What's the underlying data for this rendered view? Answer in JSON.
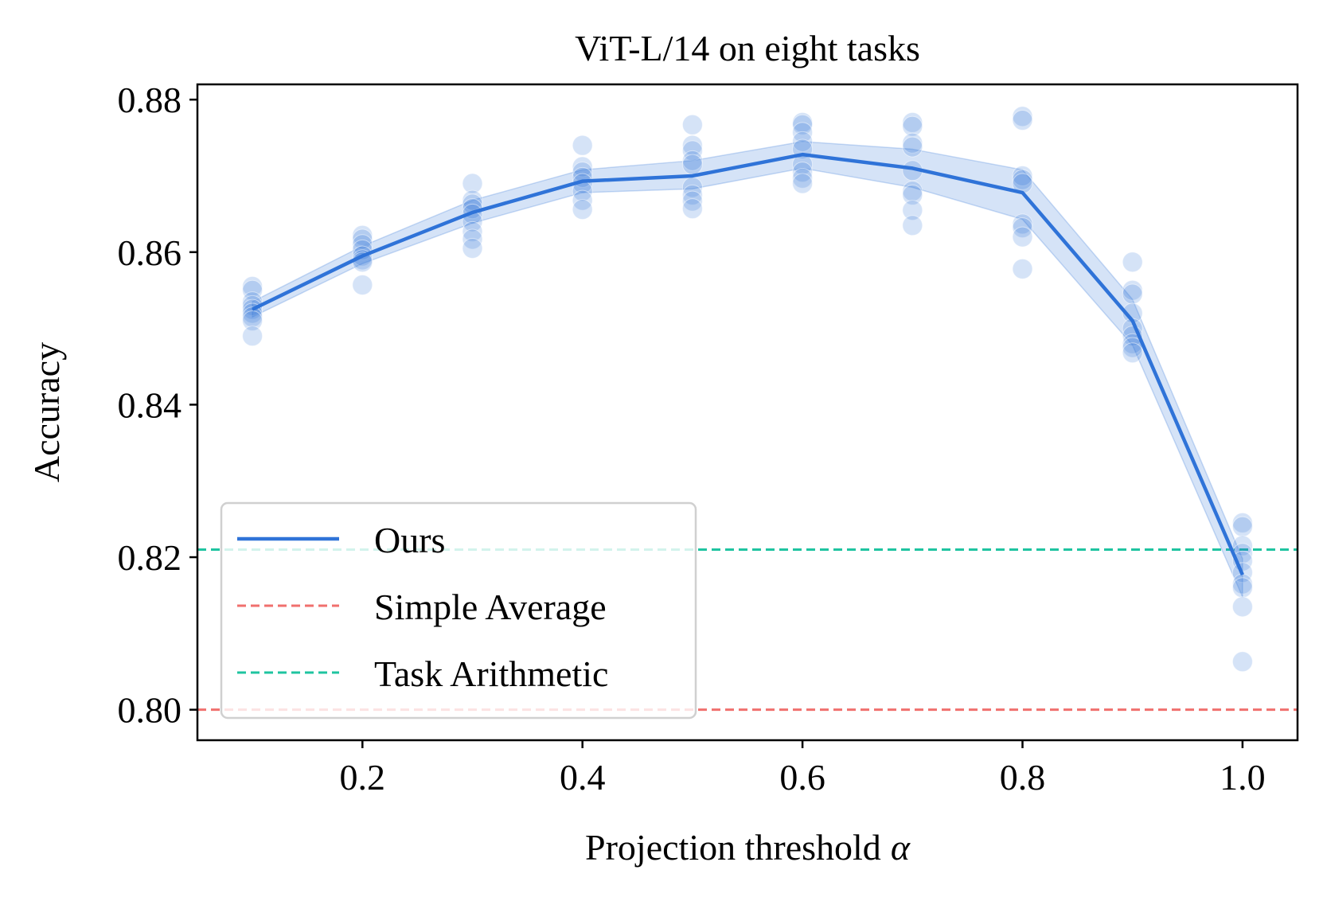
{
  "chart_data": {
    "type": "line",
    "title": "ViT-L/14 on eight tasks",
    "xlabel": "Projection threshold",
    "xlabel_symbol": "α",
    "ylabel": "Accuracy",
    "xlim": [
      0.05,
      1.05
    ],
    "ylim": [
      0.796,
      0.882
    ],
    "xticks": [
      0.2,
      0.4,
      0.6,
      0.8,
      1.0
    ],
    "xtick_labels": [
      "0.2",
      "0.4",
      "0.6",
      "0.8",
      "1.0"
    ],
    "yticks": [
      0.8,
      0.82,
      0.84,
      0.86,
      0.88
    ],
    "ytick_labels": [
      "0.80",
      "0.82",
      "0.84",
      "0.86",
      "0.88"
    ],
    "grid": false,
    "legend_position": "lower-left",
    "series": [
      {
        "name": "Ours",
        "style": "solid",
        "color": "#2f73d8",
        "x": [
          0.1,
          0.2,
          0.3,
          0.4,
          0.5,
          0.6,
          0.7,
          0.8,
          0.9,
          1.0
        ],
        "mean": [
          0.8525,
          0.8595,
          0.8652,
          0.8693,
          0.87,
          0.8728,
          0.871,
          0.8678,
          0.851,
          0.8177
        ],
        "band_low": [
          0.8515,
          0.8585,
          0.8638,
          0.8678,
          0.8683,
          0.871,
          0.8685,
          0.8643,
          0.8478,
          0.8148
        ],
        "band_high": [
          0.8535,
          0.8608,
          0.8668,
          0.8708,
          0.872,
          0.8745,
          0.8735,
          0.8708,
          0.8538,
          0.8198
        ],
        "samples": [
          {
            "x": 0.1,
            "y": [
              0.8555,
              0.855,
              0.8535,
              0.853,
              0.8525,
              0.852,
              0.8515,
              0.851,
              0.849
            ]
          },
          {
            "x": 0.2,
            "y": [
              0.8622,
              0.8617,
              0.861,
              0.8603,
              0.8595,
              0.859,
              0.8587,
              0.8557
            ]
          },
          {
            "x": 0.3,
            "y": [
              0.869,
              0.8668,
              0.8663,
              0.8657,
              0.865,
              0.864,
              0.8627,
              0.8617,
              0.8605
            ]
          },
          {
            "x": 0.4,
            "y": [
              0.874,
              0.8712,
              0.8705,
              0.8698,
              0.869,
              0.868,
              0.8668,
              0.8656
            ]
          },
          {
            "x": 0.5,
            "y": [
              0.8767,
              0.874,
              0.8733,
              0.872,
              0.8715,
              0.8685,
              0.8675,
              0.8667,
              0.8657
            ]
          },
          {
            "x": 0.6,
            "y": [
              0.877,
              0.8767,
              0.8757,
              0.8745,
              0.8735,
              0.8715,
              0.8705,
              0.8697,
              0.869
            ]
          },
          {
            "x": 0.7,
            "y": [
              0.877,
              0.8765,
              0.8743,
              0.8738,
              0.8707,
              0.868,
              0.8675,
              0.8655,
              0.8635
            ]
          },
          {
            "x": 0.8,
            "y": [
              0.8778,
              0.8773,
              0.87,
              0.8695,
              0.869,
              0.8637,
              0.8632,
              0.862,
              0.8578
            ]
          },
          {
            "x": 0.9,
            "y": [
              0.8587,
              0.855,
              0.8545,
              0.852,
              0.85,
              0.849,
              0.848,
              0.8475,
              0.8468
            ]
          },
          {
            "x": 1.0,
            "y": [
              0.8245,
              0.824,
              0.8215,
              0.8205,
              0.8195,
              0.818,
              0.8165,
              0.816,
              0.8135,
              0.8063
            ]
          }
        ]
      },
      {
        "name": "Simple Average",
        "style": "dashed",
        "color": "#f0706e",
        "constant": 0.8
      },
      {
        "name": "Task Arithmetic",
        "style": "dashed",
        "color": "#1fc4a0",
        "constant": 0.821
      }
    ]
  }
}
